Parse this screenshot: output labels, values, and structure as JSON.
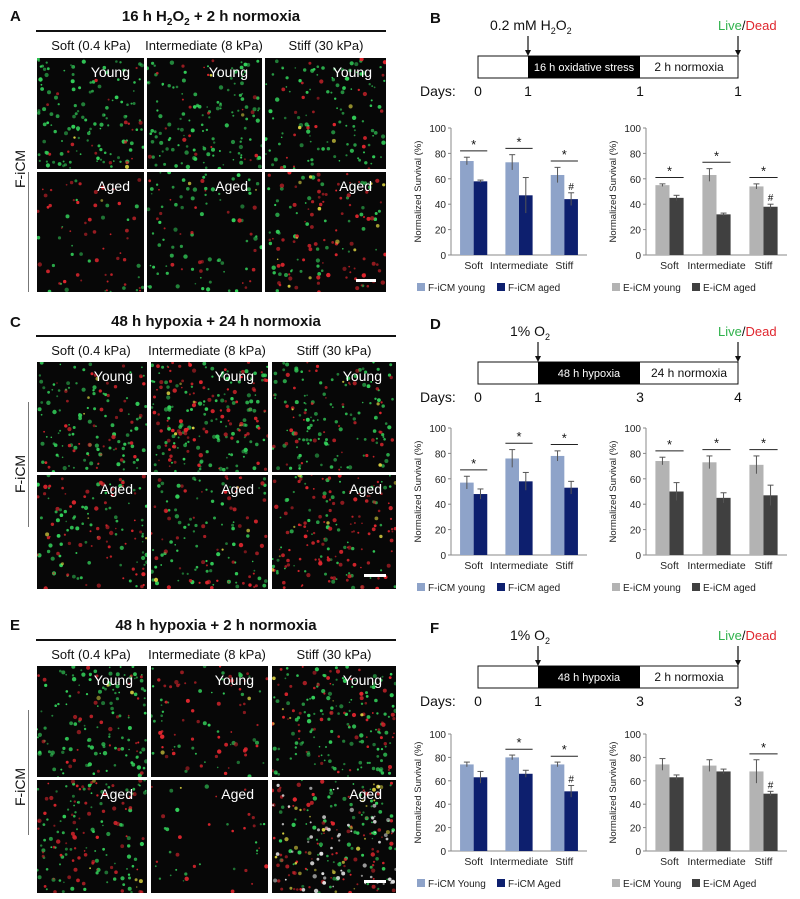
{
  "panels": [
    {
      "id": "A",
      "title": "16 h H2O2 + 2 h normoxia",
      "title_parts": {
        "pre": "16 h H",
        "sub1": "2",
        "mid": "O",
        "sub2": "2",
        "post": " + 2 h normoxia"
      },
      "stiffness": [
        "Soft (0.4 kPa)",
        "Intermediate (8 kPa)",
        "Stiff (30 kPa)"
      ],
      "row_label": "F-iCM",
      "tiles": [
        "Young",
        "Young",
        "Young",
        "Aged",
        "Aged",
        "Aged"
      ]
    },
    {
      "id": "C",
      "title": "48 h hypoxia + 24 h normoxia",
      "stiffness": [
        "Soft (0.4 kPa)",
        "Intermediate (8 kPa)",
        "Stiff (30 kPa)"
      ],
      "row_label": "F-iCM",
      "tiles": [
        "Young",
        "Young",
        "Young",
        "Aged",
        "Aged",
        "Aged"
      ]
    },
    {
      "id": "E",
      "title": "48 h hypoxia + 2 h normoxia",
      "stiffness": [
        "Soft (0.4 kPa)",
        "Intermediate (8 kPa)",
        "Stiff (30 kPa)"
      ],
      "row_label": "F-iCM",
      "tiles": [
        "Young",
        "Young",
        "Young",
        "Aged",
        "Aged",
        "Aged"
      ]
    }
  ],
  "timelines": [
    {
      "id": "B",
      "stimulus_pre": "0.2 mM H",
      "stimulus_sub": "2",
      "stimulus_post": "O",
      "stimulus_sub2": "2",
      "live": "Live",
      "slash": "/",
      "dead": "Dead",
      "box1": "16 h oxidative stress",
      "box2": "2 h normoxia",
      "days_label": "Days:",
      "days": [
        "0",
        "1",
        "1",
        "1"
      ]
    },
    {
      "id": "D",
      "stimulus_pre": "1% O",
      "stimulus_sub": "2",
      "stimulus_post": "",
      "stimulus_sub2": "",
      "live": "Live",
      "slash": "/",
      "dead": "Dead",
      "box1": "48 h hypoxia",
      "box2": "24 h normoxia",
      "days_label": "Days:",
      "days": [
        "0",
        "1",
        "3",
        "4"
      ]
    },
    {
      "id": "F",
      "stimulus_pre": "1% O",
      "stimulus_sub": "2",
      "stimulus_post": "",
      "stimulus_sub2": "",
      "live": "Live",
      "slash": "/",
      "dead": "Dead",
      "box1": "48 h hypoxia",
      "box2": "2 h normoxia",
      "days_label": "Days:",
      "days": [
        "0",
        "1",
        "3",
        "3"
      ]
    }
  ],
  "colors": {
    "young_f": "#8ea3c9",
    "aged_f": "#0d1f6e",
    "young_e": "#b3b3b3",
    "aged_e": "#404040",
    "live": "#2fb24c",
    "dead": "#e0262e"
  },
  "chart_data": [
    {
      "panel": "B",
      "type": "bar",
      "ylabel": "Normalized Survival (%)",
      "ylim": [
        0,
        100
      ],
      "yticks": [
        0,
        20,
        40,
        60,
        80,
        100
      ],
      "categories": [
        "Soft",
        "Intermediate",
        "Stiff"
      ],
      "series": [
        {
          "name": "F-iCM young",
          "values": [
            74,
            73,
            63
          ],
          "errors": [
            3,
            6,
            6
          ]
        },
        {
          "name": "F-iCM aged",
          "values": [
            58,
            47,
            44
          ],
          "errors": [
            1,
            14,
            5
          ]
        }
      ],
      "annotations": [
        "*",
        "*",
        "*",
        "#"
      ]
    },
    {
      "panel": "B",
      "type": "bar",
      "ylabel": "Normalized Survival (%)",
      "ylim": [
        0,
        100
      ],
      "yticks": [
        0,
        20,
        40,
        60,
        80,
        100
      ],
      "categories": [
        "Soft",
        "Intermediate",
        "Stiff"
      ],
      "series": [
        {
          "name": "E-iCM young",
          "values": [
            55,
            63,
            54
          ],
          "errors": [
            1,
            5,
            2
          ]
        },
        {
          "name": "E-iCM aged",
          "values": [
            45,
            32,
            38
          ],
          "errors": [
            2,
            1,
            2
          ]
        }
      ],
      "annotations": [
        "*",
        "*",
        "*",
        "#"
      ]
    },
    {
      "panel": "D",
      "type": "bar",
      "ylabel": "Normalized Survival (%)",
      "ylim": [
        0,
        100
      ],
      "yticks": [
        0,
        20,
        40,
        60,
        80,
        100
      ],
      "categories": [
        "Soft",
        "Intermediate",
        "Stiff"
      ],
      "series": [
        {
          "name": "F-iCM young",
          "values": [
            57,
            76,
            78
          ],
          "errors": [
            5,
            7,
            4
          ]
        },
        {
          "name": "F-iCM aged",
          "values": [
            48,
            58,
            53
          ],
          "errors": [
            4,
            7,
            5
          ]
        }
      ],
      "annotations": [
        "*",
        "*",
        "*"
      ]
    },
    {
      "panel": "D",
      "type": "bar",
      "ylabel": "Normalized Survival (%)",
      "ylim": [
        0,
        100
      ],
      "yticks": [
        0,
        20,
        40,
        60,
        80,
        100
      ],
      "categories": [
        "Soft",
        "Intermediate",
        "Stiff"
      ],
      "series": [
        {
          "name": "E-iCM young",
          "values": [
            74,
            73,
            71
          ],
          "errors": [
            3,
            5,
            7
          ]
        },
        {
          "name": "E-iCM aged",
          "values": [
            50,
            45,
            47
          ],
          "errors": [
            7,
            4,
            8
          ]
        }
      ],
      "annotations": [
        "*",
        "*",
        "*"
      ]
    },
    {
      "panel": "F",
      "type": "bar",
      "ylabel": "Normalized Survival (%)",
      "ylim": [
        0,
        100
      ],
      "yticks": [
        0,
        20,
        40,
        60,
        80,
        100
      ],
      "categories": [
        "Soft",
        "Intermediate",
        "Stiff"
      ],
      "series": [
        {
          "name": "F-iCM Young",
          "values": [
            74,
            80,
            74
          ],
          "errors": [
            2,
            2,
            2
          ]
        },
        {
          "name": "F-iCM Aged",
          "values": [
            63,
            66,
            51
          ],
          "errors": [
            5,
            3,
            5
          ]
        }
      ],
      "annotations": [
        "*",
        "*",
        "#"
      ]
    },
    {
      "panel": "F",
      "type": "bar",
      "ylabel": "Normalized Survival (%)",
      "ylim": [
        0,
        100
      ],
      "yticks": [
        0,
        20,
        40,
        60,
        80,
        100
      ],
      "categories": [
        "Soft",
        "Intermediate",
        "Stiff"
      ],
      "series": [
        {
          "name": "E-iCM Young",
          "values": [
            74,
            73,
            68
          ],
          "errors": [
            5,
            5,
            10
          ]
        },
        {
          "name": "E-iCM Aged",
          "values": [
            63,
            68,
            49
          ],
          "errors": [
            2,
            2,
            2
          ]
        }
      ],
      "annotations": [
        "*",
        "#"
      ]
    }
  ]
}
